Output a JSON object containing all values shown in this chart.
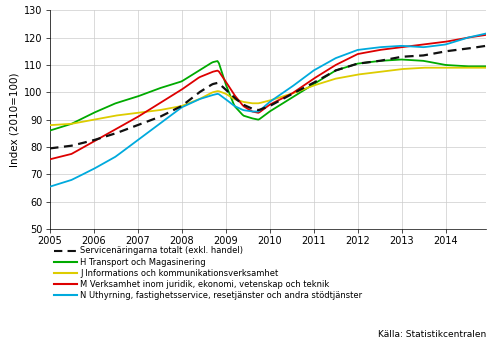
{
  "ylabel": "Index (2010=100)",
  "ylim": [
    50,
    130
  ],
  "yticks": [
    50,
    60,
    70,
    80,
    90,
    100,
    110,
    120,
    130
  ],
  "xlim": [
    2005.0,
    2014.917
  ],
  "xticks": [
    2005,
    2006,
    2007,
    2008,
    2009,
    2010,
    2011,
    2012,
    2013,
    2014
  ],
  "source_text": "Källa: Statistikcentralen",
  "legend": [
    {
      "label": "Servicenäringarna totalt (exkl. handel)",
      "color": "#111111",
      "style": "dashed",
      "lw": 1.6
    },
    {
      "label": "H Transport och Magasinering",
      "color": "#00aa00",
      "style": "solid",
      "lw": 1.3
    },
    {
      "label": "J Informations och kommunikationsverksamhet",
      "color": "#ddcc00",
      "style": "solid",
      "lw": 1.3
    },
    {
      "label": "M Verksamhet inom juridik, ekonomi, vetenskap och teknik",
      "color": "#dd0000",
      "style": "solid",
      "lw": 1.3
    },
    {
      "label": "N Uthyrning, fastighetsservice, resetjänster och andra stödtjänster",
      "color": "#00aadd",
      "style": "solid",
      "lw": 1.3
    }
  ],
  "totalt_anchors": [
    [
      2005.0,
      79.5
    ],
    [
      2005.5,
      80.5
    ],
    [
      2006.0,
      82.5
    ],
    [
      2006.5,
      85.0
    ],
    [
      2007.0,
      88.0
    ],
    [
      2007.5,
      91.0
    ],
    [
      2008.0,
      95.0
    ],
    [
      2008.4,
      100.0
    ],
    [
      2008.7,
      103.0
    ],
    [
      2008.83,
      103.5
    ],
    [
      2009.0,
      101.0
    ],
    [
      2009.2,
      98.0
    ],
    [
      2009.4,
      95.5
    ],
    [
      2009.6,
      94.0
    ],
    [
      2009.75,
      93.5
    ],
    [
      2010.0,
      95.0
    ],
    [
      2010.4,
      98.5
    ],
    [
      2011.0,
      103.5
    ],
    [
      2011.5,
      108.0
    ],
    [
      2012.0,
      110.5
    ],
    [
      2012.5,
      111.5
    ],
    [
      2013.0,
      113.0
    ],
    [
      2013.5,
      113.5
    ],
    [
      2014.0,
      115.0
    ],
    [
      2014.5,
      116.0
    ],
    [
      2014.917,
      117.0
    ]
  ],
  "H_anchors": [
    [
      2005.0,
      86.0
    ],
    [
      2005.5,
      88.5
    ],
    [
      2006.0,
      92.5
    ],
    [
      2006.5,
      96.0
    ],
    [
      2007.0,
      98.5
    ],
    [
      2007.5,
      101.5
    ],
    [
      2008.0,
      104.0
    ],
    [
      2008.4,
      108.0
    ],
    [
      2008.7,
      111.0
    ],
    [
      2008.83,
      111.5
    ],
    [
      2009.0,
      103.0
    ],
    [
      2009.2,
      95.0
    ],
    [
      2009.4,
      91.5
    ],
    [
      2009.6,
      90.5
    ],
    [
      2009.75,
      90.0
    ],
    [
      2010.0,
      93.0
    ],
    [
      2010.5,
      98.0
    ],
    [
      2011.0,
      103.0
    ],
    [
      2011.5,
      108.0
    ],
    [
      2012.0,
      110.5
    ],
    [
      2012.5,
      111.5
    ],
    [
      2013.0,
      112.0
    ],
    [
      2013.5,
      111.5
    ],
    [
      2014.0,
      110.0
    ],
    [
      2014.5,
      109.5
    ],
    [
      2014.917,
      109.5
    ]
  ],
  "J_anchors": [
    [
      2005.0,
      88.0
    ],
    [
      2005.5,
      88.5
    ],
    [
      2006.0,
      90.0
    ],
    [
      2006.5,
      91.5
    ],
    [
      2007.0,
      92.5
    ],
    [
      2007.5,
      93.5
    ],
    [
      2008.0,
      95.0
    ],
    [
      2008.4,
      97.5
    ],
    [
      2008.7,
      100.0
    ],
    [
      2008.83,
      100.5
    ],
    [
      2009.0,
      99.5
    ],
    [
      2009.2,
      97.5
    ],
    [
      2009.4,
      96.5
    ],
    [
      2009.6,
      96.0
    ],
    [
      2009.75,
      96.0
    ],
    [
      2010.0,
      97.0
    ],
    [
      2010.5,
      99.5
    ],
    [
      2011.0,
      102.5
    ],
    [
      2011.5,
      105.0
    ],
    [
      2012.0,
      106.5
    ],
    [
      2012.5,
      107.5
    ],
    [
      2013.0,
      108.5
    ],
    [
      2013.5,
      109.0
    ],
    [
      2014.0,
      109.0
    ],
    [
      2014.5,
      109.0
    ],
    [
      2014.917,
      109.0
    ]
  ],
  "M_anchors": [
    [
      2005.0,
      75.5
    ],
    [
      2005.5,
      77.5
    ],
    [
      2006.0,
      82.0
    ],
    [
      2006.5,
      86.5
    ],
    [
      2007.0,
      91.0
    ],
    [
      2007.5,
      96.0
    ],
    [
      2008.0,
      101.0
    ],
    [
      2008.4,
      105.5
    ],
    [
      2008.7,
      107.5
    ],
    [
      2008.83,
      108.0
    ],
    [
      2009.0,
      104.0
    ],
    [
      2009.2,
      99.0
    ],
    [
      2009.4,
      95.0
    ],
    [
      2009.6,
      93.0
    ],
    [
      2009.75,
      92.5
    ],
    [
      2010.0,
      95.5
    ],
    [
      2010.5,
      99.5
    ],
    [
      2011.0,
      105.0
    ],
    [
      2011.5,
      110.0
    ],
    [
      2012.0,
      114.0
    ],
    [
      2012.5,
      115.5
    ],
    [
      2013.0,
      116.5
    ],
    [
      2013.5,
      117.5
    ],
    [
      2014.0,
      118.5
    ],
    [
      2014.5,
      120.0
    ],
    [
      2014.917,
      121.0
    ]
  ],
  "N_anchors": [
    [
      2005.0,
      65.5
    ],
    [
      2005.5,
      68.0
    ],
    [
      2006.0,
      72.0
    ],
    [
      2006.5,
      76.5
    ],
    [
      2007.0,
      82.5
    ],
    [
      2007.5,
      88.5
    ],
    [
      2008.0,
      94.5
    ],
    [
      2008.4,
      97.5
    ],
    [
      2008.7,
      99.0
    ],
    [
      2008.83,
      99.5
    ],
    [
      2009.0,
      97.5
    ],
    [
      2009.2,
      95.0
    ],
    [
      2009.4,
      93.5
    ],
    [
      2009.6,
      93.0
    ],
    [
      2009.75,
      93.0
    ],
    [
      2010.0,
      96.5
    ],
    [
      2010.5,
      102.0
    ],
    [
      2011.0,
      108.0
    ],
    [
      2011.5,
      112.5
    ],
    [
      2012.0,
      115.5
    ],
    [
      2012.5,
      116.5
    ],
    [
      2013.0,
      117.0
    ],
    [
      2013.5,
      116.5
    ],
    [
      2014.0,
      117.5
    ],
    [
      2014.5,
      120.0
    ],
    [
      2014.917,
      121.5
    ]
  ]
}
